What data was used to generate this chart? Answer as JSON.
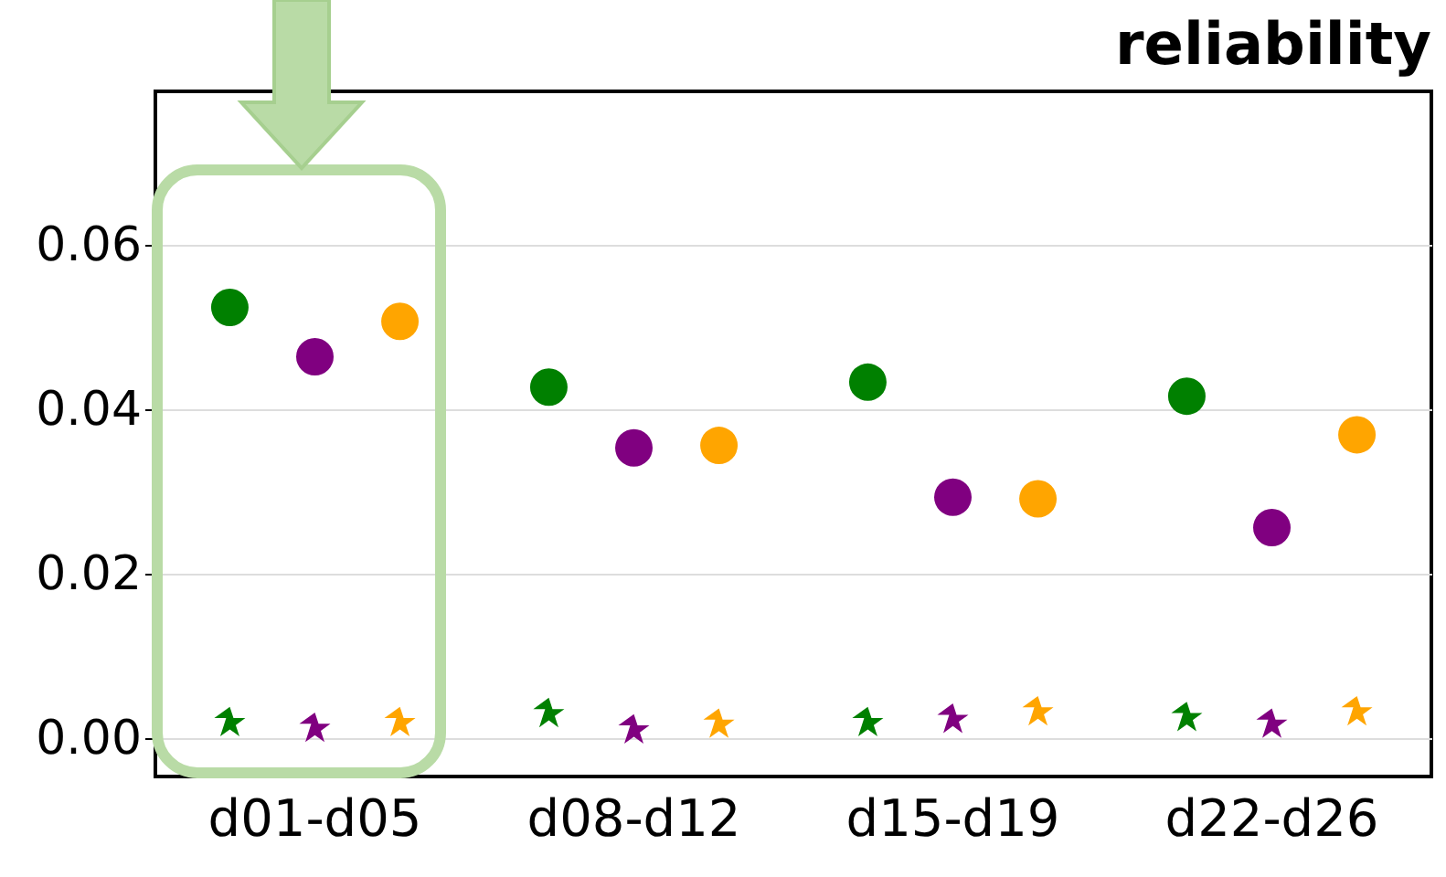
{
  "chart_data": {
    "type": "scatter",
    "title": "reliability",
    "categories": [
      "d01-d05",
      "d08-d12",
      "d15-d19",
      "d22-d26"
    ],
    "series": [
      {
        "color": "#008000",
        "marker": "circle",
        "values": [
          0.0524,
          0.0427,
          0.0433,
          0.0416
        ]
      },
      {
        "color": "#800080",
        "marker": "circle",
        "values": [
          0.0464,
          0.0353,
          0.0293,
          0.0256
        ]
      },
      {
        "color": "#ffa500",
        "marker": "circle",
        "values": [
          0.0507,
          0.0356,
          0.0291,
          0.0369
        ]
      },
      {
        "color": "#008000",
        "marker": "star",
        "values": [
          0.0018,
          0.0029,
          0.0018,
          0.0024
        ]
      },
      {
        "color": "#800080",
        "marker": "star",
        "values": [
          0.0011,
          0.0009,
          0.0022,
          0.0016
        ]
      },
      {
        "color": "#ffa500",
        "marker": "star",
        "values": [
          0.0018,
          0.0016,
          0.0031,
          0.0031
        ]
      }
    ],
    "ylim": [
      -0.0047,
      0.0787
    ],
    "yticks": [
      {
        "value": 0,
        "label": "0.00"
      },
      {
        "value": 0.02,
        "label": "0.02"
      },
      {
        "value": 0.04,
        "label": "0.04"
      },
      {
        "value": 0.06,
        "label": "0.06"
      }
    ],
    "grid": "y",
    "legend": false
  }
}
